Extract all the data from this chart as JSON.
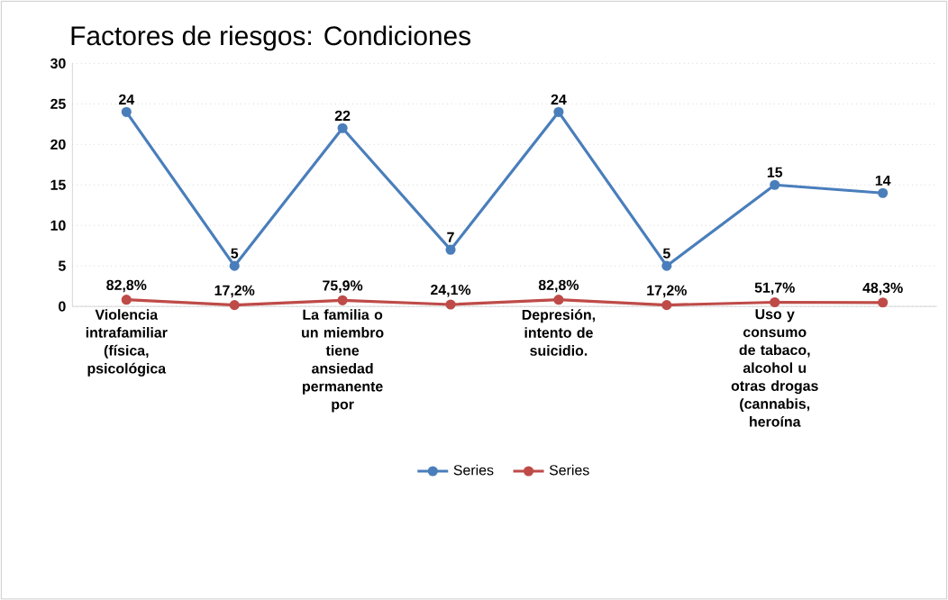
{
  "chart_data": {
    "type": "line",
    "title": "Factores de riesgos: Condiciones",
    "categories": [
      "Violencia intrafamiliar (física, psicológica",
      null,
      "La familia o un miembro tiene ansiedad permanente por",
      null,
      "Depresión, intento de suicidio.",
      null,
      "Uso y consumo de tabaco, alcohol u otras drogas (cannabis, heroína",
      null
    ],
    "series": [
      {
        "name": "Series",
        "color": "#4a7ebb",
        "values": [
          24,
          5,
          22,
          7,
          24,
          5,
          15,
          14
        ],
        "value_labels": [
          "24",
          "5",
          "22",
          "7",
          "24",
          "5",
          "15",
          "14"
        ]
      },
      {
        "name": "Series",
        "color": "#be4b48",
        "values": [
          0.828,
          0.172,
          0.759,
          0.241,
          0.828,
          0.172,
          0.517,
          0.483
        ],
        "value_labels": [
          "82,8%",
          "17,2%",
          "75,9%",
          "24,1%",
          "82,8%",
          "17,2%",
          "51,7%",
          "48,3%"
        ]
      }
    ],
    "ylim": [
      0,
      30
    ],
    "yticks": [
      0,
      5,
      10,
      15,
      20,
      25,
      30
    ],
    "grid": "y",
    "legend": "bottom",
    "marker": "circle",
    "line_style": "solid"
  }
}
